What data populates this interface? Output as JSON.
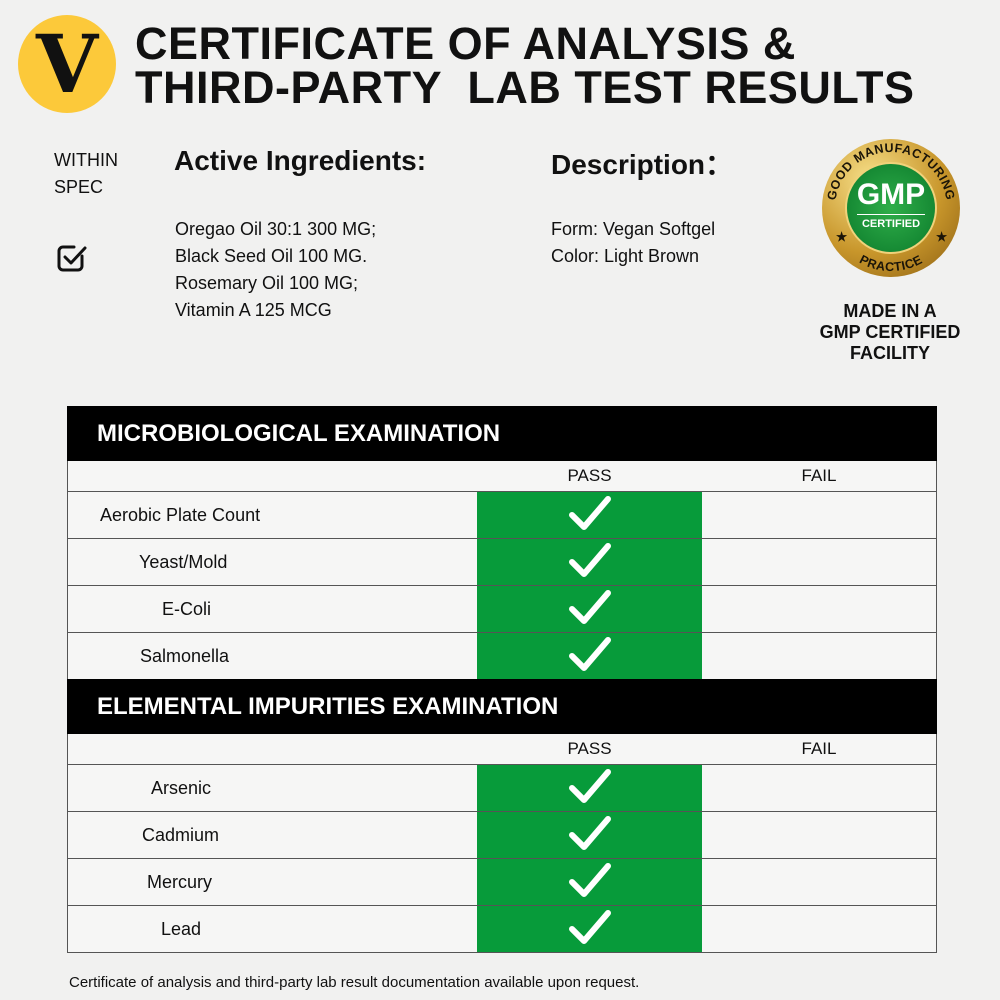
{
  "logo": {
    "letter": "V",
    "color": "#fcc93a"
  },
  "title": [
    "CERTIFICATE OF ANALYSIS &",
    "THIRD-PARTY  LAB TEST RESULTS"
  ],
  "spec": {
    "line1": "WITHIN",
    "line2": "SPEC",
    "icon": "checkbox-check-icon"
  },
  "active": {
    "heading": "Active Ingredients:",
    "items": [
      "Oregao Oil 30:1 300 MG;",
      "Black Seed Oil 100 MG.",
      "Rosemary Oil 100 MG;",
      "Vitamin A 125 MCG"
    ]
  },
  "description": {
    "heading": "Description：",
    "items": [
      "Form: Vegan Softgel",
      "Color: Light Brown"
    ]
  },
  "gmp": {
    "top": "GOOD MANUFACTURING",
    "main": "GMP",
    "sub": "CERTIFIED",
    "bottom": "PRACTICE",
    "made": [
      "MADE IN A",
      "GMP CERTIFIED",
      "FACILITY"
    ]
  },
  "micro": {
    "heading": "MICROBIOLOGICAL EXAMINATION",
    "pass": "PASS",
    "fail": "FAIL",
    "rows": [
      {
        "name": "Aerobic Plate Count",
        "result": "pass"
      },
      {
        "name": "Yeast/Mold",
        "result": "pass"
      },
      {
        "name": "E-Coli",
        "result": "pass"
      },
      {
        "name": "Salmonella",
        "result": "pass"
      }
    ]
  },
  "elemental": {
    "heading": "ELEMENTAL IMPURITIES EXAMINATION",
    "pass": "PASS",
    "fail": "FAIL",
    "rows": [
      {
        "name": "Arsenic",
        "result": "pass"
      },
      {
        "name": "Cadmium",
        "result": "pass"
      },
      {
        "name": "Mercury",
        "result": "pass"
      },
      {
        "name": "Lead",
        "result": "pass"
      }
    ]
  },
  "colors": {
    "pass_green": "#079b3a",
    "header_black": "#000000"
  },
  "footer": "Certificate of analysis and third-party lab result documentation available upon request."
}
